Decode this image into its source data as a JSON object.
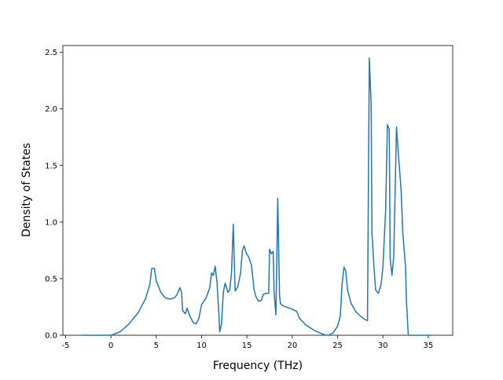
{
  "chart_data": {
    "type": "line",
    "x_label": "Frequency (THz)",
    "y_label": "Density of States",
    "x": [
      -3.2,
      0,
      1,
      2,
      3,
      3.8,
      4.3,
      4.5,
      4.8,
      5.0,
      5.5,
      6.0,
      6.5,
      7.0,
      7.3,
      7.6,
      7.8,
      7.9,
      8.2,
      8.4,
      8.7,
      9.1,
      9.4,
      9.7,
      10.0,
      10.5,
      10.9,
      11.1,
      11.3,
      11.5,
      11.7,
      11.9,
      12.0,
      12.2,
      12.4,
      12.6,
      12.9,
      13.1,
      13.3,
      13.5,
      13.6,
      13.7,
      14.0,
      14.3,
      14.5,
      14.7,
      14.9,
      15.2,
      15.5,
      15.8,
      16.0,
      16.3,
      16.6,
      16.8,
      17.1,
      17.4,
      17.5,
      17.7,
      17.9,
      18.0,
      18.2,
      18.4,
      18.6,
      18.7,
      19.0,
      20.0,
      20.5,
      20.8,
      21.5,
      22.5,
      23.5,
      24.0,
      24.5,
      25.0,
      25.3,
      25.5,
      25.7,
      25.9,
      26.1,
      26.5,
      27.0,
      27.5,
      28.0,
      28.3,
      28.5,
      28.7,
      28.8,
      29.0,
      29.2,
      29.5,
      29.8,
      30.0,
      30.3,
      30.5,
      30.7,
      30.8,
      31.0,
      31.2,
      31.5,
      31.8,
      32.0,
      32.2,
      32.5,
      32.6,
      32.8,
      35.3
    ],
    "series": [
      {
        "color": "#1f77b4",
        "values": [
          0,
          0,
          0.03,
          0.1,
          0.2,
          0.32,
          0.45,
          0.59,
          0.59,
          0.48,
          0.38,
          0.33,
          0.32,
          0.33,
          0.36,
          0.42,
          0.38,
          0.22,
          0.19,
          0.24,
          0.17,
          0.11,
          0.1,
          0.15,
          0.27,
          0.33,
          0.42,
          0.55,
          0.53,
          0.61,
          0.47,
          0.2,
          0.03,
          0.1,
          0.38,
          0.46,
          0.38,
          0.4,
          0.55,
          0.98,
          0.67,
          0.39,
          0.43,
          0.55,
          0.75,
          0.79,
          0.73,
          0.69,
          0.62,
          0.4,
          0.34,
          0.3,
          0.31,
          0.36,
          0.37,
          0.37,
          0.76,
          0.72,
          0.74,
          0.38,
          0.18,
          1.21,
          0.35,
          0.28,
          0.26,
          0.23,
          0.21,
          0.15,
          0.09,
          0.04,
          0.005,
          0,
          0.02,
          0.08,
          0.17,
          0.45,
          0.6,
          0.57,
          0.4,
          0.28,
          0.21,
          0.17,
          0.14,
          0.13,
          2.45,
          2.05,
          0.9,
          0.62,
          0.4,
          0.37,
          0.45,
          0.6,
          1.1,
          1.86,
          1.82,
          0.68,
          0.53,
          0.7,
          1.84,
          1.5,
          1.3,
          0.9,
          0.6,
          0.3,
          0,
          0
        ]
      }
    ],
    "xlim": [
      -5.3,
      37.7
    ],
    "xticks": [
      -5,
      0,
      5,
      10,
      15,
      20,
      25,
      30,
      35
    ],
    "ylim": [
      0,
      2.56
    ],
    "yticks": [
      {
        "value": 0,
        "label": "0.0"
      },
      0.5,
      {
        "value": 1,
        "label": "1.0"
      },
      1.5,
      {
        "value": 2,
        "label": "2.0"
      },
      2.5
    ]
  }
}
